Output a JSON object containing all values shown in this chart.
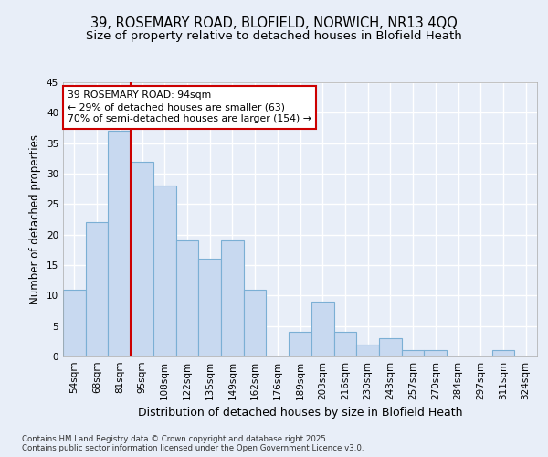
{
  "title1": "39, ROSEMARY ROAD, BLOFIELD, NORWICH, NR13 4QQ",
  "title2": "Size of property relative to detached houses in Blofield Heath",
  "xlabel": "Distribution of detached houses by size in Blofield Heath",
  "ylabel": "Number of detached properties",
  "categories": [
    "54sqm",
    "68sqm",
    "81sqm",
    "95sqm",
    "108sqm",
    "122sqm",
    "135sqm",
    "149sqm",
    "162sqm",
    "176sqm",
    "189sqm",
    "203sqm",
    "216sqm",
    "230sqm",
    "243sqm",
    "257sqm",
    "270sqm",
    "284sqm",
    "297sqm",
    "311sqm",
    "324sqm"
  ],
  "values": [
    11,
    22,
    37,
    32,
    28,
    19,
    16,
    19,
    11,
    0,
    4,
    9,
    4,
    2,
    3,
    1,
    1,
    0,
    0,
    1,
    0
  ],
  "bar_color": "#c8d9f0",
  "bar_edge_color": "#7bafd4",
  "vline_color": "#cc0000",
  "vline_x": 3,
  "annotation_text": "39 ROSEMARY ROAD: 94sqm\n← 29% of detached houses are smaller (63)\n70% of semi-detached houses are larger (154) →",
  "annotation_box_color": "#ffffff",
  "annotation_box_edge": "#cc0000",
  "ylim": [
    0,
    45
  ],
  "yticks": [
    0,
    5,
    10,
    15,
    20,
    25,
    30,
    35,
    40,
    45
  ],
  "background_color": "#e8eef8",
  "grid_color": "#ffffff",
  "footer": "Contains HM Land Registry data © Crown copyright and database right 2025.\nContains public sector information licensed under the Open Government Licence v3.0.",
  "title_fontsize": 10.5,
  "subtitle_fontsize": 9.5,
  "axis_label_fontsize": 9,
  "tick_fontsize": 7.5,
  "ylabel_fontsize": 8.5
}
